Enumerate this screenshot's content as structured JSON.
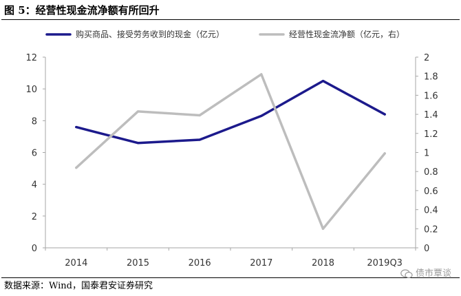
{
  "figure": {
    "title": "图 5：经营性现金流净额有所回升",
    "source": "数据来源：Wind，国泰君安证券研究",
    "watermark": "债市覃谈"
  },
  "chart_data": {
    "type": "line",
    "categories": [
      "2014",
      "2015",
      "2016",
      "2017",
      "2018",
      "2019Q3"
    ],
    "legend_position": "top",
    "grid": false,
    "series": [
      {
        "name": "购买商品、接受劳务收到的现金（亿元）",
        "axis": "left",
        "color": "#1c1a8c",
        "values": [
          7.6,
          6.6,
          6.8,
          8.3,
          10.5,
          8.4
        ]
      },
      {
        "name": "经营性现金流净额（亿元，右）",
        "axis": "right",
        "color": "#bdbdbd",
        "values": [
          0.84,
          1.43,
          1.39,
          1.82,
          0.2,
          0.99
        ]
      }
    ],
    "y_left": {
      "ylim": [
        0,
        12
      ],
      "ticks": [
        "0",
        "2",
        "4",
        "6",
        "8",
        "10",
        "12"
      ]
    },
    "y_right": {
      "ylim": [
        0,
        2
      ],
      "ticks": [
        "0",
        "0.2",
        "0.4",
        "0.6",
        "0.8",
        "1",
        "1.2",
        "1.4",
        "1.6",
        "1.8",
        "2"
      ]
    }
  }
}
